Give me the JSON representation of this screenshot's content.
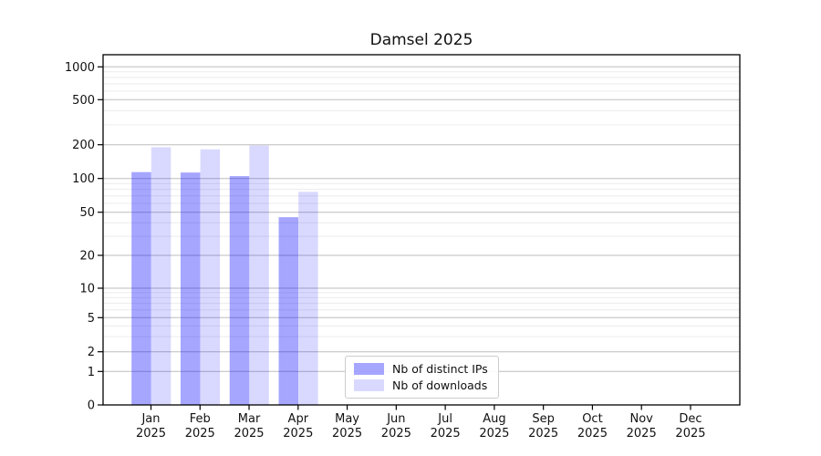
{
  "chart_data": {
    "type": "bar",
    "title": "Damsel 2025",
    "year_label": "2025",
    "categories": [
      "Jan",
      "Feb",
      "Mar",
      "Apr",
      "May",
      "Jun",
      "Jul",
      "Aug",
      "Sep",
      "Oct",
      "Nov",
      "Dec"
    ],
    "series": [
      {
        "name": "Nb of distinct IPs",
        "base_color": "#0000ff",
        "alpha": 0.35,
        "values": [
          114,
          113,
          105,
          45,
          0,
          0,
          0,
          0,
          0,
          0,
          0,
          0
        ]
      },
      {
        "name": "Nb of downloads",
        "base_color": "#0000ff",
        "alpha": 0.15,
        "values": [
          190,
          182,
          197,
          76,
          0,
          0,
          0,
          0,
          0,
          0,
          0,
          0
        ]
      }
    ],
    "y_axis": {
      "scale": "symlog",
      "ticks": [
        0,
        1,
        2,
        5,
        10,
        20,
        50,
        100,
        200,
        500,
        1000
      ],
      "minor_ticks": [
        3,
        4,
        6,
        7,
        8,
        9,
        30,
        40,
        60,
        70,
        80,
        90,
        300,
        400,
        600,
        700,
        800,
        900
      ]
    },
    "grid": {
      "major_color": "#bdbdbd",
      "minor_color": "#ececec"
    },
    "legend": {
      "position": "lower center"
    },
    "axis_color": "#000000"
  }
}
